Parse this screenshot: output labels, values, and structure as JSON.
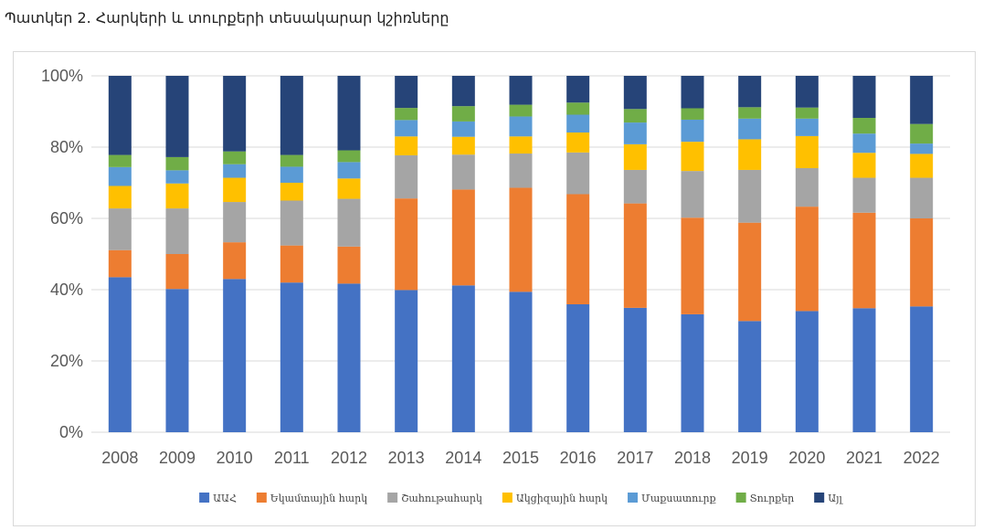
{
  "caption": "Պատկեր 2. Հարկերի և տուրքերի տեսակարար կշիռները",
  "chart_data": {
    "type": "bar",
    "stacked": true,
    "categories": [
      "2008",
      "2009",
      "2010",
      "2011",
      "2012",
      "2013",
      "2014",
      "2015",
      "2016",
      "2017",
      "2018",
      "2019",
      "2020",
      "2021",
      "2022"
    ],
    "ylim": [
      0,
      100
    ],
    "yticks": [
      "0%",
      "20%",
      "40%",
      "60%",
      "80%",
      "100%"
    ],
    "grid": true,
    "legend_position": "bottom",
    "series": [
      {
        "name": "ԱԱՀ",
        "color": "#4472C4",
        "values": [
          43.5,
          40.2,
          43.0,
          42.0,
          41.7,
          39.9,
          41.2,
          39.4,
          35.9,
          34.9,
          33.1,
          31.2,
          34.0,
          34.8,
          35.3
        ]
      },
      {
        "name": "Եկամտային հարկ",
        "color": "#ED7D31",
        "values": [
          7.6,
          9.8,
          10.3,
          10.4,
          10.4,
          25.7,
          26.9,
          29.2,
          30.9,
          29.3,
          27.1,
          27.6,
          29.3,
          26.8,
          24.7
        ]
      },
      {
        "name": "Շահութահարկ",
        "color": "#A5A5A5",
        "values": [
          11.7,
          12.8,
          11.3,
          12.6,
          13.4,
          12.1,
          9.8,
          9.6,
          11.7,
          9.4,
          13.1,
          14.8,
          10.8,
          9.8,
          11.4
        ]
      },
      {
        "name": "Ակցիզային հարկ",
        "color": "#FFC000",
        "values": [
          6.3,
          7.0,
          6.8,
          5.0,
          5.7,
          5.3,
          5.0,
          4.8,
          5.6,
          7.2,
          8.2,
          8.6,
          9.0,
          7.0,
          6.7
        ]
      },
      {
        "name": "Մաքսատուրք",
        "color": "#5B9BD5",
        "values": [
          5.3,
          3.7,
          3.8,
          4.5,
          4.6,
          4.6,
          4.3,
          5.6,
          5.0,
          6.1,
          6.2,
          5.8,
          4.9,
          5.4,
          2.9
        ]
      },
      {
        "name": "Տուրքեր",
        "color": "#70AD47",
        "values": [
          3.4,
          3.7,
          3.6,
          3.3,
          3.3,
          3.4,
          4.3,
          3.3,
          3.4,
          3.8,
          3.2,
          3.2,
          3.1,
          4.4,
          5.5
        ]
      },
      {
        "name": "Այլ",
        "color": "#264478",
        "values": [
          22.2,
          22.8,
          21.2,
          22.2,
          20.9,
          9.0,
          8.5,
          8.1,
          7.5,
          9.3,
          9.1,
          8.8,
          8.9,
          11.8,
          13.5
        ]
      }
    ]
  }
}
